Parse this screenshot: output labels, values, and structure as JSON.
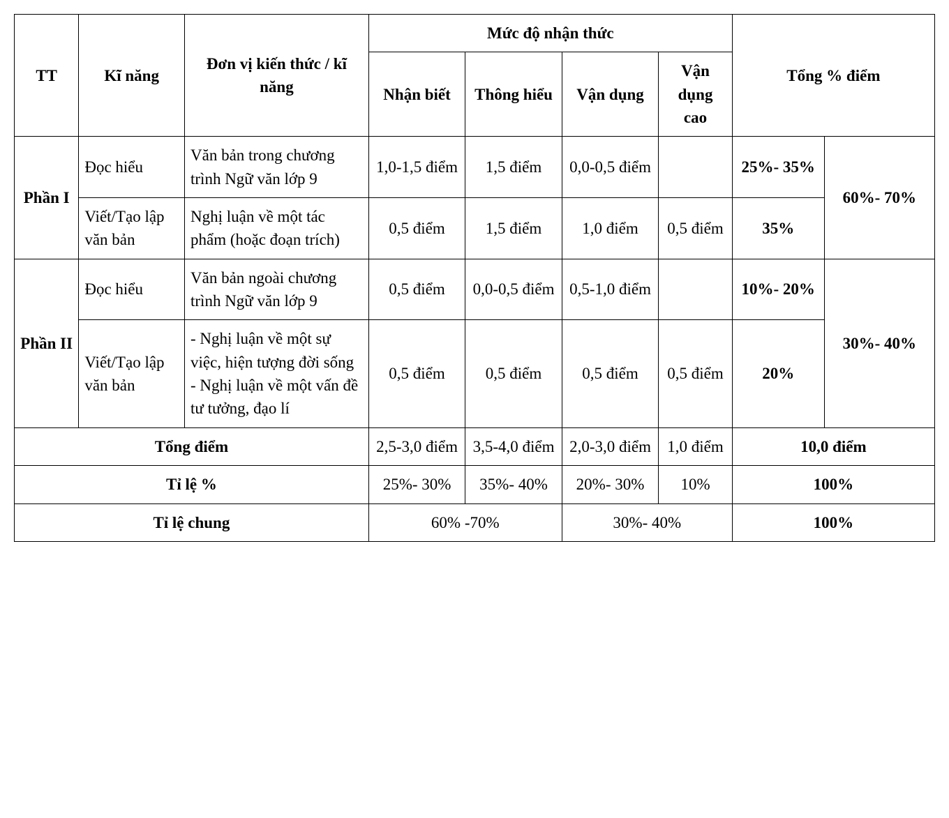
{
  "table": {
    "type": "table",
    "border_color": "#000000",
    "background_color": "#ffffff",
    "text_color": "#000000",
    "font_family": "Times New Roman",
    "cell_fontsize": 23,
    "columns_width_pct": [
      7,
      11.5,
      20,
      10.5,
      10.5,
      10.5,
      8,
      10,
      12
    ],
    "headers": {
      "tt": "TT",
      "ki_nang": "Kĩ năng",
      "don_vi": "Đơn vị kiến thức / kĩ năng",
      "muc_do_group": "Mức độ nhận thức",
      "muc_do": {
        "nhan_biet": "Nhận biết",
        "thong_hieu": "Thông hiểu",
        "van_dung": "Vận dụng",
        "van_dung_cao": "Vận dụng cao"
      },
      "tong_pct": "Tổng % điểm"
    },
    "sections": [
      {
        "tt": "Phần I",
        "group_total": "60%- 70%",
        "rows": [
          {
            "ki_nang": "Đọc hiểu",
            "don_vi": "Văn bản trong chương trình Ngữ văn lớp 9",
            "nhan_biet": "1,0-1,5 điểm",
            "thong_hieu": "1,5 điểm",
            "van_dung": "0,0-0,5 điểm",
            "van_dung_cao": "",
            "tong": "25%- 35%"
          },
          {
            "ki_nang": "Viết/Tạo lập văn bản",
            "don_vi": "Nghị luận về một tác phẩm (hoặc đoạn trích)",
            "nhan_biet": "0,5 điểm",
            "thong_hieu": "1,5 điểm",
            "van_dung": "1,0 điểm",
            "van_dung_cao": "0,5 điểm",
            "tong": "35%"
          }
        ]
      },
      {
        "tt": "Phần II",
        "group_total": "30%- 40%",
        "rows": [
          {
            "ki_nang": "Đọc hiểu",
            "don_vi": "Văn bản ngoài chương trình Ngữ văn lớp 9",
            "nhan_biet": "0,5 điểm",
            "thong_hieu": "0,0-0,5 điểm",
            "van_dung": "0,5-1,0 điểm",
            "van_dung_cao": "",
            "tong": "10%- 20%"
          },
          {
            "ki_nang": "Viết/Tạo lập văn bản",
            "don_vi": "- Nghị luận về một sự việc, hiện tượng đời sống\n- Nghị luận về một vấn đề tư tưởng, đạo lí",
            "nhan_biet": "0,5 điểm",
            "thong_hieu": "0,5 điểm",
            "van_dung": "0,5 điểm",
            "van_dung_cao": "0,5 điểm",
            "tong": "20%"
          }
        ]
      }
    ],
    "footer": {
      "tong_diem": {
        "label": "Tổng điểm",
        "nhan_biet": "2,5-3,0 điểm",
        "thong_hieu": "3,5-4,0 điểm",
        "van_dung": "2,0-3,0 điểm",
        "van_dung_cao": "1,0 điểm",
        "tong": "10,0 điểm"
      },
      "ti_le_pct": {
        "label": "Tỉ lệ %",
        "nhan_biet": "25%- 30%",
        "thong_hieu": "35%- 40%",
        "van_dung": "20%- 30%",
        "van_dung_cao": "10%",
        "tong": "100%"
      },
      "ti_le_chung": {
        "label": "Tỉ lệ chung",
        "group1": "60% -70%",
        "group2": "30%- 40%",
        "tong": "100%"
      }
    }
  }
}
